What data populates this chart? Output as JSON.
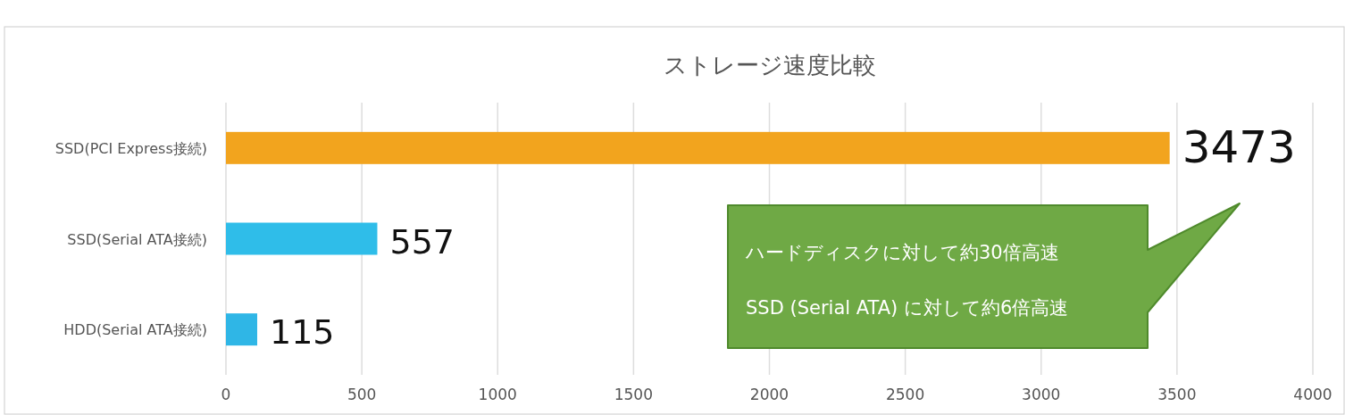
{
  "chart_data": {
    "type": "bar",
    "orientation": "horizontal",
    "title": "ストレージ速度比較",
    "categories": [
      "SSD(PCI Express接続)",
      "SSD(Serial ATA接続)",
      "HDD(Serial ATA接続)"
    ],
    "values": [
      3473,
      557,
      115
    ],
    "colors": [
      "#f2a41e",
      "#2fbde9",
      "#2fb6e6"
    ],
    "xlim": [
      0,
      4000
    ],
    "xticks": [
      0,
      500,
      1000,
      1500,
      2000,
      2500,
      3000,
      3500,
      4000
    ],
    "grid": "x",
    "data_labels": true,
    "annotations": [
      "ハードディスクに対して約30倍高速",
      "SSD (Serial ATA) に対して約6倍高速"
    ]
  }
}
